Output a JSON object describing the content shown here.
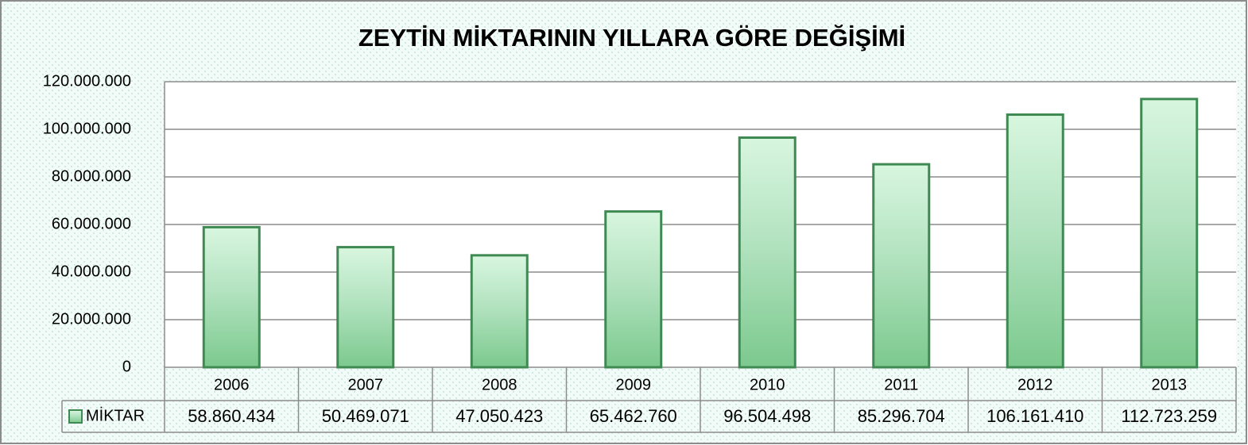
{
  "chart_data": {
    "type": "bar",
    "title": "ZEYTİN MİKTARININ YILLARA GÖRE DEĞİŞİMİ",
    "categories": [
      "2006",
      "2007",
      "2008",
      "2009",
      "2010",
      "2011",
      "2012",
      "2013"
    ],
    "series": [
      {
        "name": "MİKTAR",
        "color": "#7cc98e",
        "values": [
          58860434,
          50469071,
          47050423,
          65462760,
          96504498,
          85296704,
          106161410,
          112723259
        ],
        "value_labels": [
          "58.860.434",
          "50.469.071",
          "47.050.423",
          "65.462.760",
          "96.504.498",
          "85.296.704",
          "106.161.410",
          "112.723.259"
        ]
      }
    ],
    "ylim": [
      0,
      120000000
    ],
    "yticks": [
      0,
      {
        "value": 20000000,
        "label": "20.000.000"
      },
      {
        "value": 40000000,
        "label": "40.000.000"
      },
      {
        "value": 60000000,
        "label": "60.000.000"
      },
      {
        "value": 80000000,
        "label": "80.000.000"
      },
      {
        "value": 100000000,
        "label": "100.000.000"
      },
      {
        "value": 120000000,
        "label": "120.000.000"
      }
    ],
    "grid": true
  }
}
